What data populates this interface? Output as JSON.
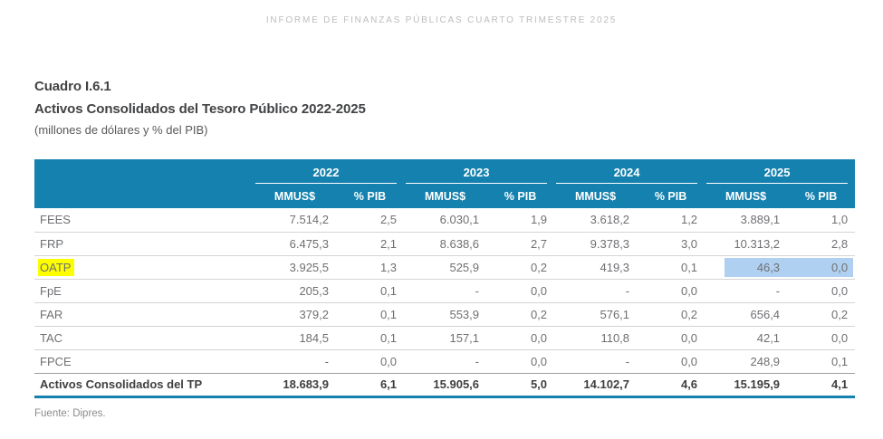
{
  "page_header": "INFORME DE FINANZAS PÚBLICAS CUARTO TRIMESTRE 2025",
  "title": {
    "cuadro": "Cuadro I.6.1",
    "main": "Activos Consolidados del Tesoro Público 2022-2025",
    "subtitle": "(millones de dólares y % del PIB)"
  },
  "table": {
    "year_groups": [
      "2022",
      "2023",
      "2024",
      "2025"
    ],
    "sub_headers": [
      "MMUS$",
      "% PIB"
    ],
    "rows": [
      {
        "label": "FEES",
        "values": [
          "7.514,2",
          "2,5",
          "6.030,1",
          "1,9",
          "3.618,2",
          "1,2",
          "3.889,1",
          "1,0"
        ]
      },
      {
        "label": "FRP",
        "values": [
          "6.475,3",
          "2,1",
          "8.638,6",
          "2,7",
          "9.378,3",
          "3,0",
          "10.313,2",
          "2,8"
        ]
      },
      {
        "label": "OATP",
        "values": [
          "3.925,5",
          "1,3",
          "525,9",
          "0,2",
          "419,3",
          "0,1",
          "46,3",
          "0,0"
        ]
      },
      {
        "label": "FpE",
        "values": [
          "205,3",
          "0,1",
          "-",
          "0,0",
          "-",
          "0,0",
          "-",
          "0,0"
        ]
      },
      {
        "label": "FAR",
        "values": [
          "379,2",
          "0,1",
          "553,9",
          "0,2",
          "576,1",
          "0,2",
          "656,4",
          "0,2"
        ]
      },
      {
        "label": "TAC",
        "values": [
          "184,5",
          "0,1",
          "157,1",
          "0,0",
          "110,8",
          "0,0",
          "42,1",
          "0,0"
        ]
      },
      {
        "label": "FPCE",
        "values": [
          "-",
          "0,0",
          "-",
          "0,0",
          "-",
          "0,0",
          "248,9",
          "0,1"
        ]
      }
    ],
    "total_row": {
      "label": "Activos Consolidados del TP",
      "values": [
        "18.683,9",
        "6,1",
        "15.905,6",
        "5,0",
        "14.102,7",
        "4,6",
        "15.195,9",
        "4,1"
      ]
    }
  },
  "footer": "Fuente: Dipres.",
  "colors": {
    "header_bg": "#1581AE",
    "highlight_yellow": "#FDFE00",
    "highlight_blue": "#AFD0F0",
    "accent_line": "#1581AE"
  }
}
